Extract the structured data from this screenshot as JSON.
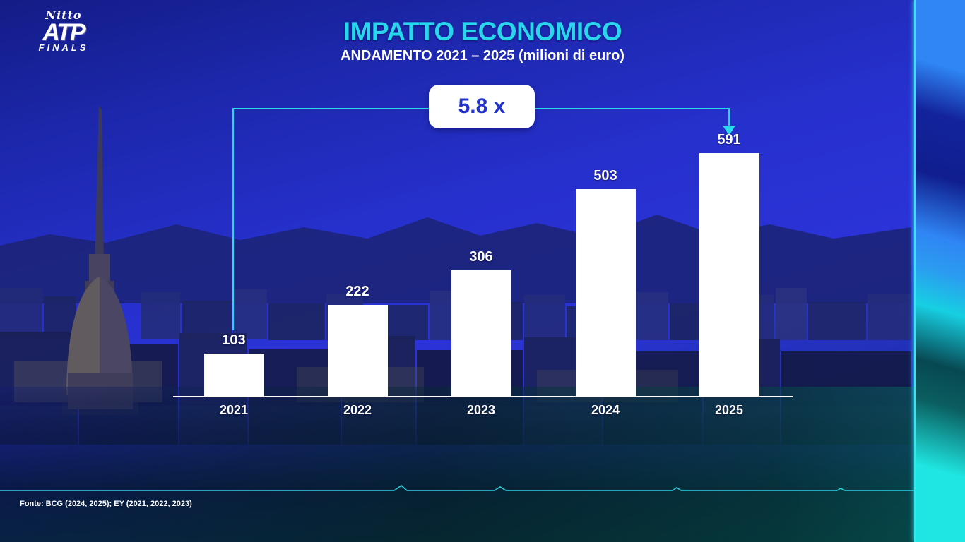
{
  "slide": {
    "title": "IMPATTO ECONOMICO",
    "subtitle": "ANDAMENTO 2021 – 2025 (milioni di euro)",
    "footer_source": "Fonte: BCG (2024, 2025); EY (2021, 2022, 2023)"
  },
  "logo": {
    "line1": "Nitto",
    "line2": "ATP",
    "line3": "FINALS"
  },
  "annotation": {
    "multiplier_label": "5.8 x"
  },
  "chart_data": {
    "type": "bar",
    "title": "IMPATTO ECONOMICO",
    "subtitle": "ANDAMENTO 2021 – 2025 (milioni di euro)",
    "categories": [
      "2021",
      "2022",
      "2023",
      "2024",
      "2025"
    ],
    "values": [
      103,
      222,
      306,
      503,
      591
    ],
    "unit": "milioni di euro",
    "ylim": [
      0,
      620
    ],
    "grid": false,
    "bar_color": "#ffffff",
    "value_label_color": "#ffffff",
    "annotation": "5.8 x",
    "annotation_meaning": "growth multiple from 2021 to 2025",
    "legend": "none"
  },
  "colors": {
    "title_cyan": "#29d6ec",
    "bracket_cyan": "#2bd9ec",
    "annotation_text_blue": "#2233cc",
    "background_blue": "#2b33d8",
    "bar_white": "#ffffff"
  }
}
